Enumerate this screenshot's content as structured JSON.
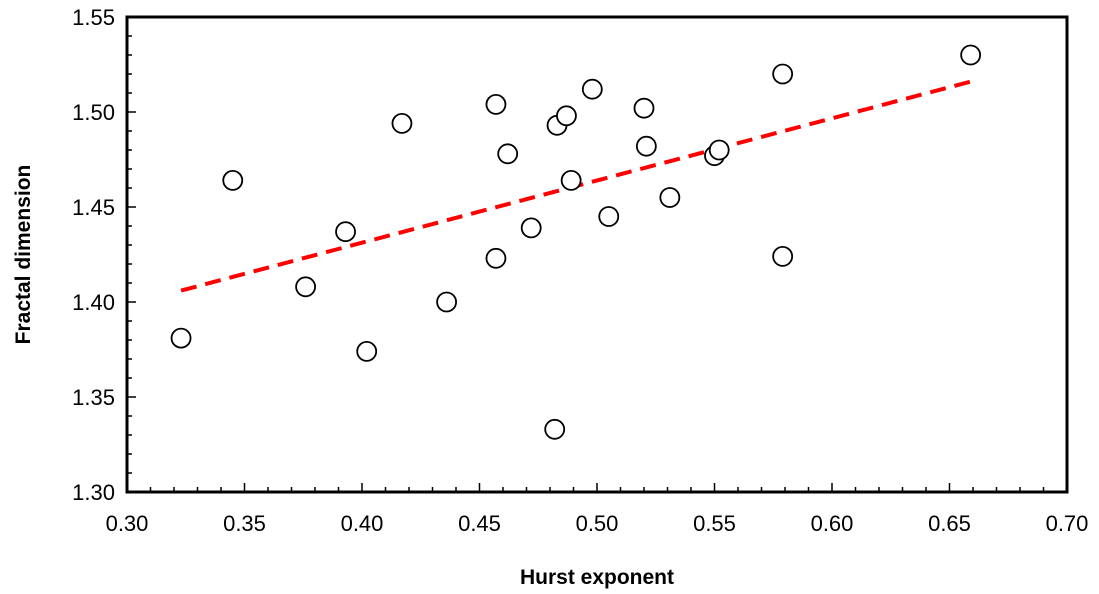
{
  "chart_data": {
    "type": "scatter",
    "title": "",
    "xlabel": "Hurst exponent",
    "ylabel": "Fractal dimension",
    "xlim": [
      0.3,
      0.7
    ],
    "ylim": [
      1.3,
      1.55
    ],
    "x_ticks": [
      "0.30",
      "0.35",
      "0.40",
      "0.45",
      "0.50",
      "0.55",
      "0.60",
      "0.65",
      "0.70"
    ],
    "y_ticks": [
      "1.30",
      "1.35",
      "1.40",
      "1.45",
      "1.50",
      "1.55"
    ],
    "x_minor_step": 0.01,
    "y_minor_step": 0.01,
    "grid": false,
    "legend": "none",
    "points": [
      {
        "x": 0.323,
        "y": 1.381
      },
      {
        "x": 0.345,
        "y": 1.464
      },
      {
        "x": 0.376,
        "y": 1.408
      },
      {
        "x": 0.393,
        "y": 1.437
      },
      {
        "x": 0.402,
        "y": 1.374
      },
      {
        "x": 0.417,
        "y": 1.494
      },
      {
        "x": 0.436,
        "y": 1.4
      },
      {
        "x": 0.457,
        "y": 1.423
      },
      {
        "x": 0.457,
        "y": 1.504
      },
      {
        "x": 0.462,
        "y": 1.478
      },
      {
        "x": 0.472,
        "y": 1.439
      },
      {
        "x": 0.482,
        "y": 1.333
      },
      {
        "x": 0.483,
        "y": 1.493
      },
      {
        "x": 0.487,
        "y": 1.498
      },
      {
        "x": 0.489,
        "y": 1.464
      },
      {
        "x": 0.498,
        "y": 1.512
      },
      {
        "x": 0.505,
        "y": 1.445
      },
      {
        "x": 0.52,
        "y": 1.502
      },
      {
        "x": 0.521,
        "y": 1.482
      },
      {
        "x": 0.531,
        "y": 1.455
      },
      {
        "x": 0.55,
        "y": 1.477
      },
      {
        "x": 0.552,
        "y": 1.48
      },
      {
        "x": 0.579,
        "y": 1.52
      },
      {
        "x": 0.579,
        "y": 1.424
      },
      {
        "x": 0.659,
        "y": 1.53
      }
    ],
    "trendline": {
      "x": [
        0.323,
        0.659
      ],
      "y": [
        1.406,
        1.516
      ],
      "style": "dashed"
    },
    "colors": {
      "trendline": "#ff0000",
      "marker_fill": "#ffffff",
      "marker_stroke": "#000000",
      "axes": "#000000"
    }
  }
}
